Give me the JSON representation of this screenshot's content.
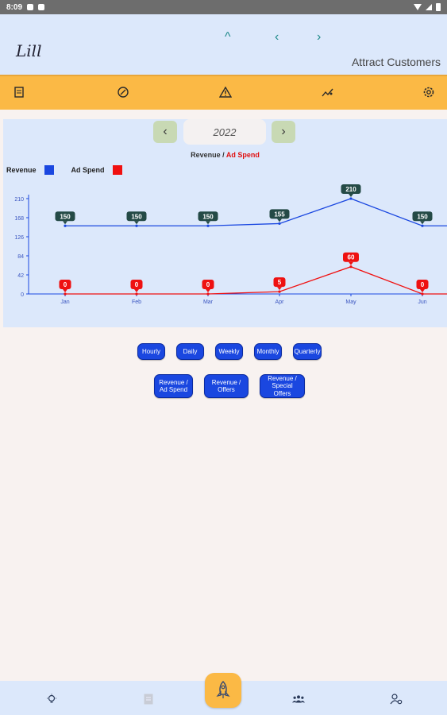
{
  "status_bar": {
    "time": "8:09"
  },
  "header": {
    "logo": "Lill",
    "title": "Attract Customers",
    "nav": {
      "up": "^",
      "left": "‹",
      "right": "›"
    }
  },
  "toolbar": {
    "icons": [
      "receipt-icon",
      "discount-icon",
      "warning-icon",
      "sparkle-chart-icon",
      "settings-icon"
    ]
  },
  "year_selector": {
    "prev": "‹",
    "year": "2022",
    "next": "›"
  },
  "chart_data": {
    "type": "line",
    "title_prefix": "Revenue / ",
    "title_highlight": "Ad Spend",
    "categories": [
      "Jan",
      "Feb",
      "Mar",
      "Apr",
      "May",
      "Jun"
    ],
    "series": [
      {
        "name": "Revenue",
        "color": "#1a47e0",
        "values": [
          150,
          150,
          150,
          155,
          210,
          150
        ]
      },
      {
        "name": "Ad Spend",
        "color": "#f01010",
        "values": [
          0,
          0,
          0,
          5,
          60,
          0
        ]
      }
    ],
    "y_ticks": [
      "0",
      "42",
      "84",
      "126",
      "168",
      "210"
    ],
    "ylim": [
      0,
      210
    ],
    "label_colors": {
      "Revenue": "#244a46",
      "Ad Spend": "#ee1111"
    }
  },
  "filters": {
    "period": [
      "Hourly",
      "Daily",
      "Weekly",
      "Monthly",
      "Quarterly"
    ],
    "compare": [
      [
        "Revenue /",
        "Ad Spend"
      ],
      [
        "Revenue /",
        "Offers"
      ],
      [
        "Revenue /",
        "Special Offers"
      ]
    ]
  },
  "bottom_nav": {
    "icons": [
      "lightbulb-icon",
      "document-icon",
      "rocket-icon",
      "team-icon",
      "user-settings-icon"
    ]
  }
}
